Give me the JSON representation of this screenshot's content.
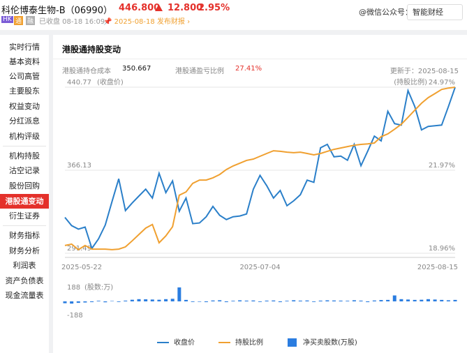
{
  "header": {
    "title": "科伦博泰生物-B（06990）",
    "price": "446.800",
    "change": "12.800",
    "change_pct": "2.95%",
    "badges": [
      "HK",
      "通",
      "融"
    ],
    "status": "已收盘 08-18 16:09",
    "report": "2025-08-18 发布财报",
    "watermark": "@微信公众号：智能财经"
  },
  "sidebar": {
    "groups": [
      [
        "实时行情",
        "基本资料",
        "公司高管",
        "主要股东",
        "权益变动",
        "分红派息",
        "机构评级"
      ],
      [
        "机构持股",
        "沽空记录",
        "股份回购",
        "港股通变动",
        "衍生证券"
      ],
      [
        "财务指标",
        "财务分析",
        "利润表",
        "资产负债表",
        "现金流量表"
      ]
    ]
  },
  "panel": {
    "title": "港股通持股变动",
    "cost_label": "港股通持仓成本",
    "cost": "350.667",
    "pnl_label": "港股通盈亏比例",
    "pnl": "27.41%",
    "updated": "更新于：2025-08-15"
  },
  "chart_data": [
    {
      "type": "line",
      "y_label": "(收盘价)",
      "y2_label": "(持股比例)",
      "categories": [
        "2025-05-22",
        null,
        null,
        null,
        null,
        null,
        null,
        null,
        null,
        null,
        null,
        null,
        null,
        null,
        null,
        null,
        null,
        null,
        null,
        null,
        null,
        null,
        null,
        null,
        null,
        null,
        null,
        null,
        null,
        "2025-07-04",
        null,
        null,
        null,
        null,
        null,
        null,
        null,
        null,
        null,
        null,
        null,
        null,
        null,
        null,
        null,
        null,
        null,
        null,
        null,
        null,
        null,
        null,
        null,
        null,
        null,
        null,
        null,
        null,
        "2025-08-15"
      ],
      "ylim": [
        291.49,
        440.77
      ],
      "yticks": [
        440.77,
        366.13,
        291.49
      ],
      "y2lim": [
        18.96,
        24.97
      ],
      "y2ticks": [
        {
          "value": 24.97,
          "label": "24.97%"
        },
        {
          "value": 21.97,
          "label": "21.97%"
        },
        {
          "value": 18.96,
          "label": "18.96%"
        }
      ],
      "grid": true,
      "series": [
        {
          "name": "收盘价",
          "color": "#2a7fc9",
          "values": [
            323.7,
            316.3,
            313.2,
            315.0,
            295.8,
            304.5,
            316.9,
            338.0,
            358.4,
            329.9,
            336.7,
            342.9,
            349.1,
            341.1,
            363.4,
            346.0,
            356.5,
            329.3,
            341.1,
            318.1,
            318.7,
            324.3,
            333.6,
            325.6,
            321.8,
            324.3,
            325.0,
            326.8,
            349.1,
            361.5,
            352.2,
            341.1,
            347.9,
            334.2,
            338.6,
            344.1,
            357.2,
            355.3,
            386.3,
            389.4,
            378.2,
            378.8,
            375.1,
            389.4,
            370.2,
            383.2,
            396.8,
            392.5,
            419.1,
            408.0,
            406.7,
            437.7,
            423.4,
            402.4,
            405.5,
            406.1,
            406.7,
            423.4,
            440.7
          ]
        },
        {
          "name": "持股比例",
          "color": "#f0a030",
          "axis": "y2",
          "values": [
            19.24,
            19.29,
            19.09,
            19.24,
            19.11,
            19.11,
            19.11,
            19.09,
            19.11,
            19.19,
            19.41,
            19.64,
            19.87,
            20.0,
            19.34,
            19.59,
            19.92,
            21.06,
            21.18,
            21.49,
            21.61,
            21.61,
            21.69,
            21.81,
            21.99,
            22.12,
            22.22,
            22.32,
            22.37,
            22.47,
            22.57,
            22.67,
            22.65,
            22.62,
            22.6,
            22.62,
            22.57,
            22.52,
            22.57,
            22.65,
            22.72,
            22.77,
            22.82,
            22.87,
            22.9,
            22.92,
            22.95,
            23.18,
            23.28,
            23.45,
            23.63,
            23.88,
            24.14,
            24.39,
            24.59,
            24.74,
            24.89,
            24.94,
            24.97
          ]
        }
      ]
    },
    {
      "type": "bar",
      "y_label": "(股数:万)",
      "ylim": [
        -188,
        188
      ],
      "yticks": [
        188,
        -188
      ],
      "series": [
        {
          "name": "净买卖股数(万股)",
          "color": "#2b7de0",
          "values": [
            -25,
            -30,
            -20,
            -15,
            -10,
            8,
            -12,
            5,
            -8,
            10,
            22,
            30,
            28,
            25,
            22,
            30,
            35,
            188,
            20,
            -8,
            -6,
            -10,
            12,
            15,
            -10,
            8,
            14,
            10,
            12,
            -8,
            10,
            12,
            -10,
            8,
            15,
            10,
            12,
            -8,
            10,
            14,
            12,
            10,
            8,
            15,
            10,
            -10,
            12,
            18,
            20,
            80,
            30,
            25,
            20,
            22,
            30,
            25,
            20,
            15,
            20
          ]
        }
      ]
    }
  ]
}
